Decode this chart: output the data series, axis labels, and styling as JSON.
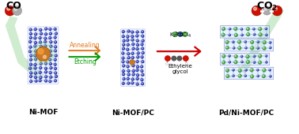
{
  "background_color": "#ffffff",
  "labels": {
    "CO": "CO",
    "NiMOF": "Ni-MOF",
    "NiMOFPC": "Ni-MOF/PC",
    "PdNiMOFPC": "Pd/Ni-MOF/PC",
    "annealing": "Annealing",
    "etching": "Etching",
    "k2pdcl4": "K$_2$PdCl$_4$",
    "ethylene_glycol": "Ethylene\nglycol"
  },
  "arrow_orange_color": "#e07820",
  "arrow_green_color": "#009900",
  "arrow_red_color": "#cc0000",
  "big_green_color": "#aaddaa",
  "mol_O_color": "#cc1100",
  "mol_C_color": "#aaaaaa",
  "mof_node_color": "#2233aa",
  "mof_white_color": "#e8eeff",
  "mof_bond_color": "#3344cc",
  "ni_np_color": "#cc7722",
  "ni_np_hi_color": "#ffaa44",
  "pd_color": "#44aa44",
  "pd_dark_color": "#226622",
  "text_color": "#000000",
  "label_fs": 6.5,
  "co_label_fs": 9,
  "arrow_label_fs": 5.5,
  "reagent_label_fs": 5.0
}
